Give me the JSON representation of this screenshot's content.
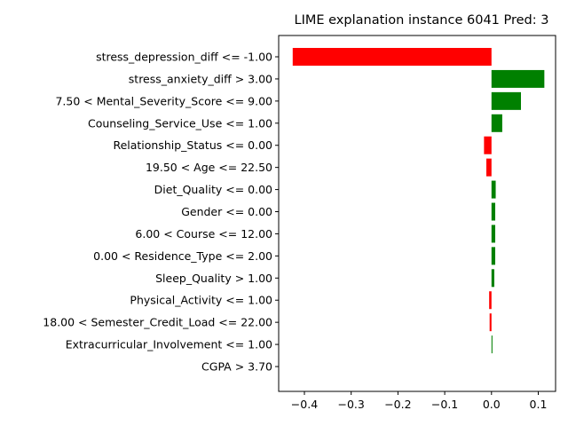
{
  "chart_data": {
    "type": "bar",
    "orientation": "horizontal",
    "title": "LIME explanation instance 6041 Pred: 3",
    "xlabel": "",
    "ylabel": "",
    "xlim": [
      -0.455,
      0.137
    ],
    "xticks": [
      -0.4,
      -0.3,
      -0.2,
      -0.1,
      0.0,
      0.1
    ],
    "xtick_labels": [
      "−0.4",
      "−0.3",
      "−0.2",
      "−0.1",
      "0.0",
      "0.1"
    ],
    "colors": {
      "positive": "#008000",
      "negative": "#ff0000"
    },
    "grid": false,
    "legend": "none",
    "categories": [
      "stress_depression_diff <= -1.00",
      "stress_anxiety_diff > 3.00",
      "7.50 < Mental_Severity_Score <= 9.00",
      "Counseling_Service_Use <= 1.00",
      "Relationship_Status <= 0.00",
      "19.50 < Age <= 22.50",
      "Diet_Quality <= 0.00",
      "Gender <= 0.00",
      "6.00 < Course <= 12.00",
      "0.00 < Residence_Type <= 2.00",
      "Sleep_Quality > 1.00",
      "Physical_Activity <= 1.00",
      "18.00 < Semester_Credit_Load <= 22.00",
      "Extracurricular_Involvement <= 1.00",
      "CGPA > 3.70"
    ],
    "values": [
      -0.425,
      0.113,
      0.063,
      0.023,
      -0.016,
      -0.011,
      0.009,
      0.008,
      0.008,
      0.008,
      0.006,
      -0.005,
      -0.004,
      0.002,
      0.0
    ]
  }
}
